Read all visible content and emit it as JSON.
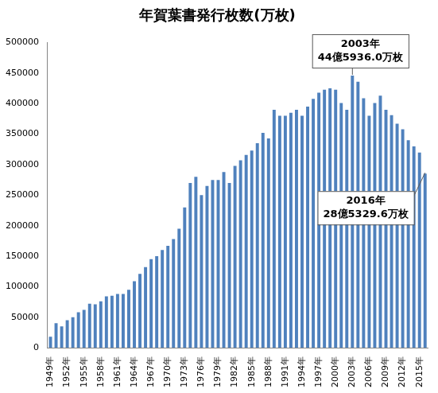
{
  "chart_data": {
    "type": "bar",
    "title": "年賀葉書発行枚数(万枚)",
    "categories": [
      "1949年",
      null,
      null,
      "1952年",
      null,
      null,
      "1955年",
      null,
      null,
      "1958年",
      null,
      null,
      "1961年",
      null,
      null,
      "1964年",
      null,
      null,
      "1967年",
      null,
      null,
      "1970年",
      null,
      null,
      "1973年",
      null,
      null,
      "1976年",
      null,
      null,
      "1979年",
      null,
      null,
      "1982年",
      null,
      null,
      "1985年",
      null,
      null,
      "1988年",
      null,
      null,
      "1991年",
      null,
      null,
      "1994年",
      null,
      null,
      "1997年",
      null,
      null,
      "2000年",
      null,
      null,
      "2003年",
      null,
      null,
      "2006年",
      null,
      null,
      "2009年",
      null,
      null,
      "2012年",
      null,
      null,
      "2015年",
      null
    ],
    "values": [
      18000,
      40000,
      35000,
      45000,
      50000,
      58000,
      62000,
      72000,
      71000,
      76000,
      84000,
      85000,
      88000,
      88000,
      95000,
      109000,
      121000,
      132000,
      145000,
      150000,
      160000,
      167000,
      178000,
      195000,
      230000,
      270000,
      280000,
      250000,
      265000,
      275000,
      275000,
      288000,
      270000,
      298000,
      307000,
      316000,
      323000,
      335000,
      352000,
      343000,
      390000,
      380000,
      380000,
      385000,
      390000,
      380000,
      395000,
      408000,
      418000,
      423000,
      425000,
      423000,
      401000,
      390000,
      445936,
      436000,
      409000,
      380000,
      401000,
      413000,
      390000,
      381000,
      367000,
      358000,
      340000,
      330000,
      320000,
      285329.6
    ],
    "color": "#4f81bd",
    "ylim": [
      0,
      500000
    ],
    "yticks": [
      0,
      50000,
      100000,
      150000,
      200000,
      250000,
      300000,
      350000,
      400000,
      450000,
      500000
    ],
    "grid": false,
    "annotations": [
      {
        "text": [
          "2003年",
          "44億5936.0万枚"
        ],
        "value": 445936
      },
      {
        "text": [
          "2016年",
          "28億5329.6万枚"
        ],
        "value": 285329.6
      }
    ]
  }
}
